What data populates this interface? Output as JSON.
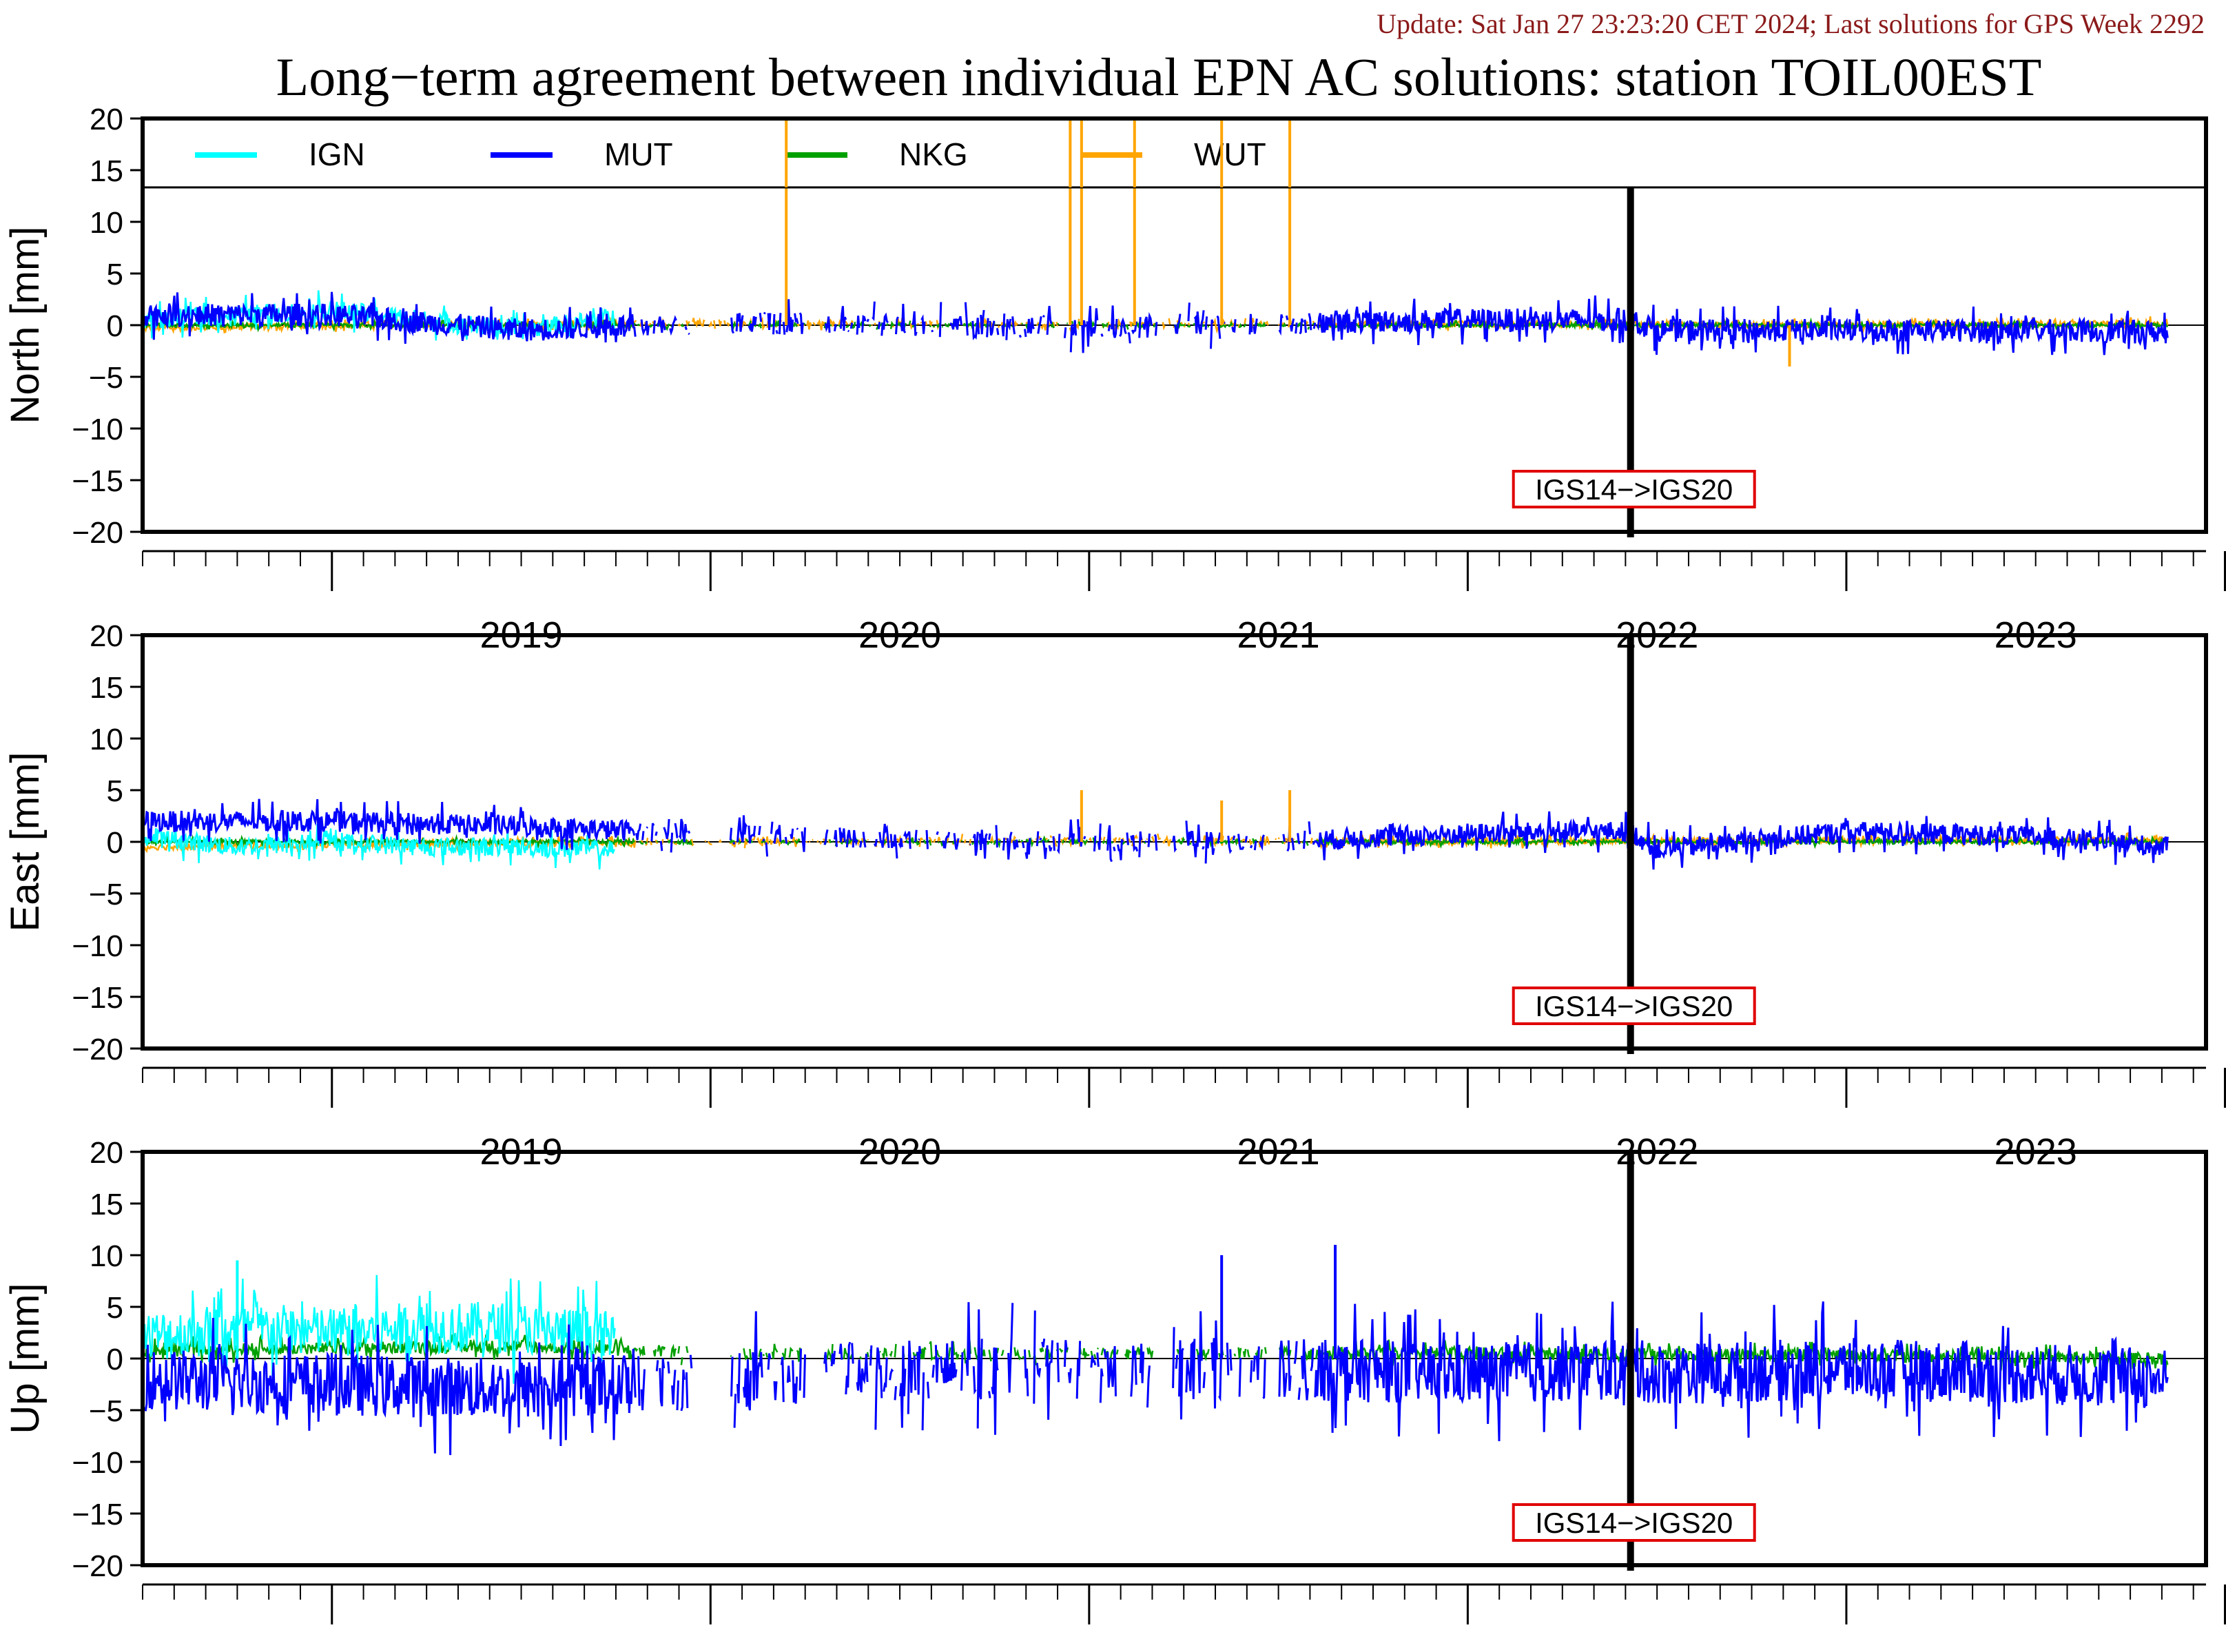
{
  "update_text": "Update: Sat Jan 27 23:23:20 CET 2024; Last solutions for GPS Week 2292",
  "title": "Long−term agreement between individual EPN AC solutions: station TOIL00EST",
  "colors": {
    "update_text": "#8b1a1a",
    "IGN": "#00ffff",
    "MUT": "#0000ff",
    "NKG": "#00a000",
    "WUT": "#ffa500",
    "marker_box": "#e00000",
    "frame": "#000000"
  },
  "legend": [
    {
      "name": "IGN",
      "color": "#00ffff"
    },
    {
      "name": "MUT",
      "color": "#0000ff"
    },
    {
      "name": "NKG",
      "color": "#00a000"
    },
    {
      "name": "WUT",
      "color": "#ffa500"
    }
  ],
  "chart_data": [
    {
      "type": "line",
      "panel": "north",
      "ylabel": "North [mm]",
      "ylim": [
        -20,
        20
      ],
      "xlim": [
        2018.5,
        2023.95
      ],
      "yticks": [
        20,
        15,
        10,
        5,
        0,
        -5,
        -10,
        -15,
        -20
      ],
      "xtick_labels": [
        "2019",
        "2020",
        "2021",
        "2022",
        "2023"
      ],
      "frame_change": {
        "x": 2022.43,
        "label": "IGS14−>IGS20"
      },
      "series": [
        {
          "name": "IGN",
          "x": [
            2018.5,
            2018.75,
            2019.0,
            2019.25,
            2019.5,
            2019.75
          ],
          "values": [
            0.5,
            1.0,
            1.5,
            0.5,
            -0.5,
            0.8
          ]
        },
        {
          "name": "MUT",
          "x": [
            2018.5,
            2019.0,
            2019.5,
            2020.0,
            2020.5,
            2021.0,
            2021.5,
            2022.0,
            2022.43,
            2022.5,
            2023.0,
            2023.5,
            2023.85
          ],
          "values": [
            1.0,
            1.0,
            -0.5,
            0.3,
            0.0,
            -0.3,
            0.2,
            0.5,
            0.5,
            -0.5,
            -0.5,
            -0.5,
            -0.7
          ]
        },
        {
          "name": "NKG",
          "x": [
            2018.5,
            2019.0,
            2020.0,
            2021.0,
            2022.0,
            2023.0,
            2023.85
          ],
          "values": [
            0.0,
            0.0,
            0.0,
            0.0,
            0.0,
            0.0,
            0.0
          ]
        },
        {
          "name": "WUT",
          "x": [
            2018.5,
            2019.0,
            2020.0,
            2021.0,
            2022.0,
            2023.0,
            2023.85
          ],
          "values": [
            -0.3,
            0.0,
            0.2,
            0.0,
            0.1,
            0.0,
            0.2
          ]
        }
      ],
      "spikes": [
        {
          "series": "WUT",
          "x": 2020.2,
          "value": 20
        },
        {
          "series": "WUT",
          "x": 2020.95,
          "value": 20
        },
        {
          "series": "WUT",
          "x": 2020.98,
          "value": 20
        },
        {
          "series": "WUT",
          "x": 2021.12,
          "value": 20
        },
        {
          "series": "WUT",
          "x": 2021.35,
          "value": 20
        },
        {
          "series": "WUT",
          "x": 2021.53,
          "value": 20
        },
        {
          "series": "WUT",
          "x": 2022.85,
          "value": -4
        }
      ]
    },
    {
      "type": "line",
      "panel": "east",
      "ylabel": "East [mm]",
      "ylim": [
        -20,
        20
      ],
      "xlim": [
        2018.5,
        2023.95
      ],
      "yticks": [
        20,
        15,
        10,
        5,
        0,
        -5,
        -10,
        -15,
        -20
      ],
      "xtick_labels": [
        "2019",
        "2020",
        "2021",
        "2022",
        "2023"
      ],
      "frame_change": {
        "x": 2022.43,
        "label": "IGS14−>IGS20"
      },
      "series": [
        {
          "name": "IGN",
          "x": [
            2018.5,
            2018.75,
            2019.0,
            2019.25,
            2019.5,
            2019.75
          ],
          "values": [
            0.5,
            -0.5,
            0.0,
            -0.5,
            -0.5,
            -0.8
          ]
        },
        {
          "name": "MUT",
          "x": [
            2018.5,
            2019.0,
            2019.5,
            2020.0,
            2020.5,
            2021.0,
            2021.5,
            2022.0,
            2022.43,
            2022.5,
            2023.0,
            2023.5,
            2023.85
          ],
          "values": [
            2.0,
            2.0,
            1.5,
            0.8,
            0.3,
            0.0,
            0.0,
            0.8,
            1.0,
            -0.8,
            1.0,
            0.5,
            -0.5
          ]
        },
        {
          "name": "NKG",
          "x": [
            2018.5,
            2019.0,
            2020.0,
            2021.0,
            2022.0,
            2023.0,
            2023.85
          ],
          "values": [
            0.0,
            0.0,
            0.0,
            0.0,
            0.0,
            0.0,
            0.0
          ]
        },
        {
          "name": "WUT",
          "x": [
            2018.5,
            2019.0,
            2020.0,
            2021.0,
            2022.0,
            2023.0,
            2023.85
          ],
          "values": [
            -0.5,
            -0.3,
            0.0,
            0.2,
            0.0,
            0.2,
            0.2
          ]
        }
      ],
      "spikes": [
        {
          "series": "WUT",
          "x": 2020.98,
          "value": 5
        },
        {
          "series": "WUT",
          "x": 2021.35,
          "value": 4
        },
        {
          "series": "WUT",
          "x": 2021.53,
          "value": 5
        }
      ]
    },
    {
      "type": "line",
      "panel": "up",
      "ylabel": "Up [mm]",
      "ylim": [
        -20,
        20
      ],
      "xlim": [
        2018.5,
        2023.95
      ],
      "yticks": [
        20,
        15,
        10,
        5,
        0,
        -5,
        -10,
        -15,
        -20
      ],
      "xtick_labels": [
        "2019",
        "2020",
        "2021",
        "2022",
        "2023"
      ],
      "frame_change": {
        "x": 2022.43,
        "label": "IGS14−>IGS20"
      },
      "series": [
        {
          "name": "IGN",
          "x": [
            2018.5,
            2018.75,
            2019.0,
            2019.25,
            2019.5,
            2019.75
          ],
          "values": [
            2.0,
            3.0,
            2.5,
            3.0,
            3.0,
            2.0
          ]
        },
        {
          "name": "MUT",
          "x": [
            2018.5,
            2019.0,
            2019.5,
            2020.0,
            2020.5,
            2021.0,
            2021.5,
            2022.0,
            2022.43,
            2022.5,
            2023.0,
            2023.5,
            2023.85
          ],
          "values": [
            -2.0,
            -2.5,
            -3.0,
            -2.0,
            -1.0,
            -1.0,
            -1.0,
            -1.5,
            -1.0,
            -1.5,
            -1.0,
            -1.5,
            -2.0
          ]
        },
        {
          "name": "NKG",
          "x": [
            2018.5,
            2019.0,
            2019.5,
            2020.0,
            2021.0,
            2022.0,
            2023.0,
            2023.85
          ],
          "values": [
            0.8,
            1.0,
            1.2,
            0.5,
            0.5,
            0.5,
            0.3,
            0.0
          ]
        },
        {
          "name": "WUT",
          "x": [],
          "values": []
        }
      ],
      "spikes": [
        {
          "series": "MUT",
          "x": 2021.65,
          "value": 11
        },
        {
          "series": "MUT",
          "x": 2021.35,
          "value": 10
        },
        {
          "series": "IGN",
          "x": 2018.75,
          "value": 9.5
        }
      ]
    }
  ]
}
